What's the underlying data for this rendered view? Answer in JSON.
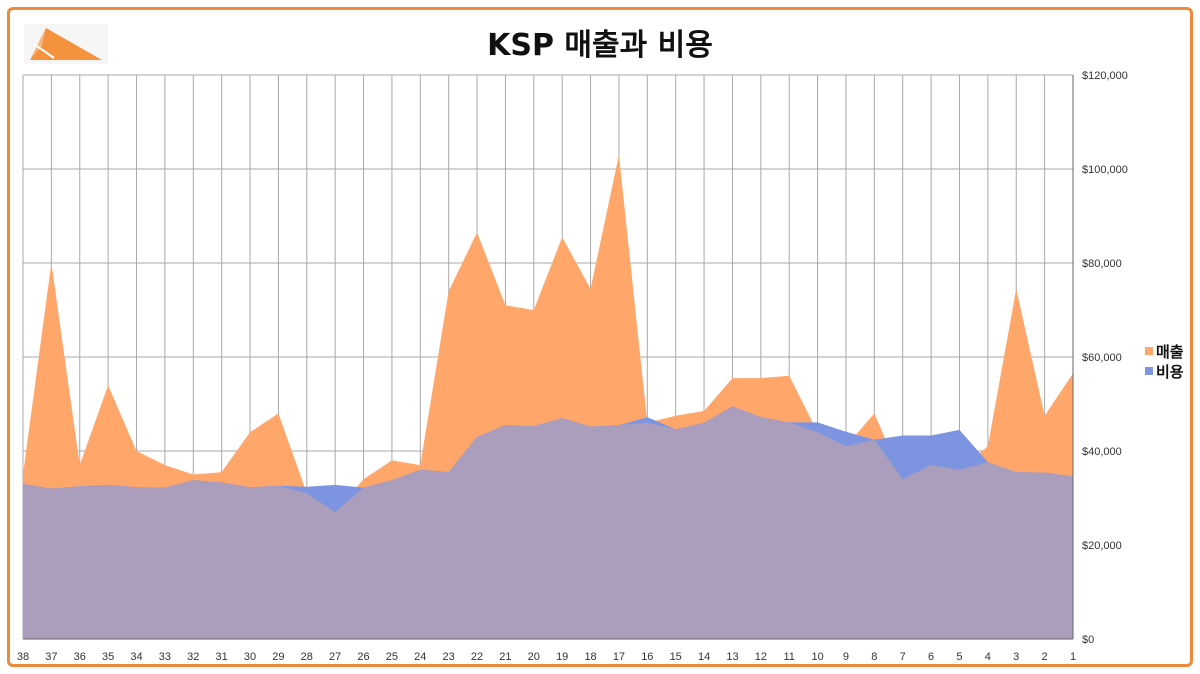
{
  "colors": {
    "border": "#ee8a3c",
    "revenue": "#ffa66a",
    "cost": "#7d95e0",
    "overlap": "#ab9dbc",
    "grid": "#a9a9a9"
  },
  "logo": {
    "icon": "kite-logo-icon"
  },
  "chart_data": {
    "type": "area",
    "title": "KSP 매출과 비용",
    "categories": [
      "38",
      "37",
      "36",
      "35",
      "34",
      "33",
      "32",
      "31",
      "30",
      "29",
      "28",
      "27",
      "26",
      "25",
      "24",
      "23",
      "22",
      "21",
      "20",
      "19",
      "18",
      "17",
      "16",
      "15",
      "14",
      "13",
      "12",
      "11",
      "10",
      "9",
      "8",
      "7",
      "6",
      "5",
      "4",
      "3",
      "2",
      "1"
    ],
    "series": [
      {
        "name": "매출",
        "color": "#ffa66a",
        "values": [
          35000,
          80000,
          37000,
          54000,
          40000,
          37000,
          35000,
          35500,
          44000,
          48000,
          31000,
          27000,
          34000,
          38000,
          37000,
          74000,
          86500,
          71000,
          70000,
          85500,
          74500,
          103000,
          46000,
          47500,
          48500,
          55500,
          55500,
          56000,
          44000,
          41000,
          48000,
          34000,
          37000,
          36000,
          41000,
          74500,
          47500,
          56500
        ]
      },
      {
        "name": "비용",
        "color": "#7d95e0",
        "values": [
          33000,
          32000,
          32500,
          32800,
          32300,
          32200,
          33800,
          33300,
          32300,
          32600,
          32400,
          32800,
          32200,
          33800,
          36000,
          35500,
          43000,
          45500,
          45300,
          47000,
          45200,
          45500,
          47200,
          44600,
          46000,
          49500,
          47200,
          46100,
          46100,
          44100,
          42400,
          43300,
          43300,
          44500,
          37600,
          35500,
          35400,
          34600
        ]
      }
    ],
    "y_ticks": [
      "$0",
      "$20,000",
      "$40,000",
      "$60,000",
      "$80,000",
      "$100,000",
      "$120,000"
    ],
    "ylim": [
      0,
      120000
    ],
    "grid": true,
    "legend_position": "right"
  }
}
